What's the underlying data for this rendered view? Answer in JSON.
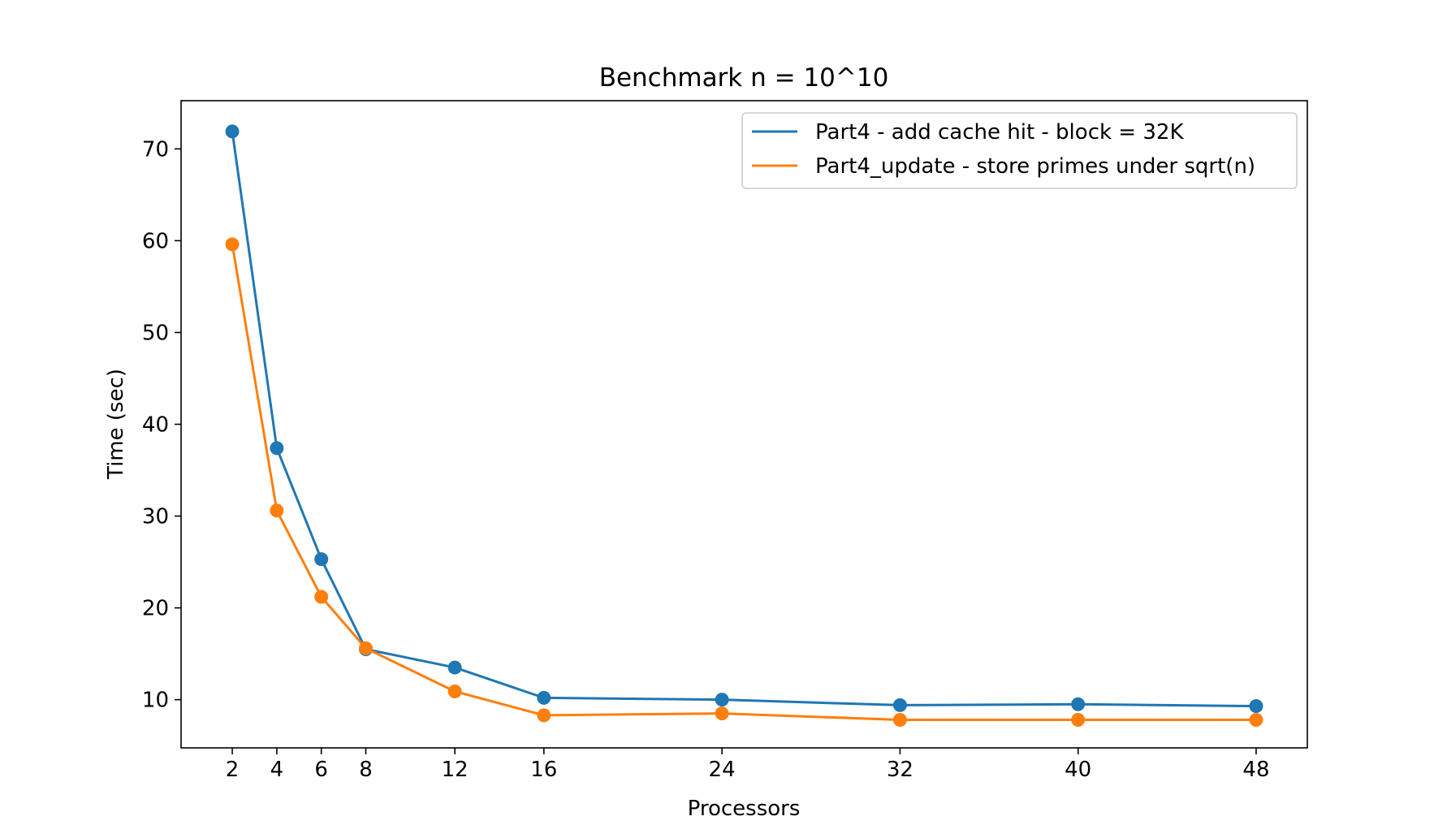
{
  "chart_data": {
    "type": "line",
    "title": "Benchmark n = 10^10",
    "xlabel": "Processors",
    "ylabel": "Time (sec)",
    "x": [
      2,
      4,
      6,
      8,
      12,
      16,
      24,
      32,
      40,
      48
    ],
    "x_ticks": [
      2,
      4,
      6,
      8,
      12,
      16,
      24,
      32,
      40,
      48
    ],
    "y_ticks": [
      10,
      20,
      30,
      40,
      50,
      60,
      70
    ],
    "xlim": [
      -0.3,
      50.3
    ],
    "ylim": [
      4.75,
      75.25
    ],
    "grid": false,
    "legend_position": "top-right",
    "series": [
      {
        "name": "Part4 - add cache hit - block = 32K",
        "color": "#1f77b4",
        "marker": "circle",
        "values": [
          71.9,
          37.4,
          25.3,
          15.5,
          13.5,
          10.2,
          10.0,
          9.4,
          9.5,
          9.3
        ]
      },
      {
        "name": "Part4_update - store primes under sqrt(n)",
        "color": "#ff7f0e",
        "marker": "circle",
        "values": [
          59.6,
          30.6,
          21.2,
          15.6,
          10.9,
          8.3,
          8.5,
          7.8,
          7.8,
          7.8
        ]
      }
    ]
  }
}
